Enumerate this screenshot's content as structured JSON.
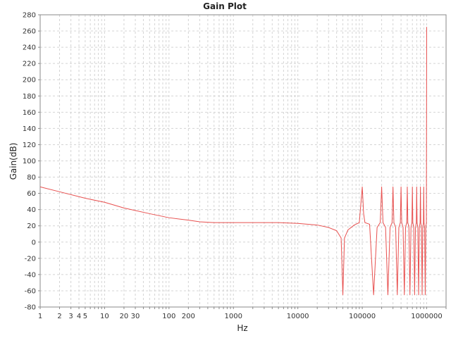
{
  "chart_data": {
    "type": "line",
    "title": "Gain Plot",
    "xlabel": "Hz",
    "ylabel": "Gain(dB)",
    "x_scale": "log",
    "xlim": [
      1,
      2000000
    ],
    "ylim": [
      -80,
      280
    ],
    "grid": true,
    "x_tick_labels": [
      {
        "value": 1,
        "label": "1"
      },
      {
        "value": 2,
        "label": "2"
      },
      {
        "value": 3,
        "label": "3"
      },
      {
        "value": 4,
        "label": "4"
      },
      {
        "value": 5,
        "label": "5"
      },
      {
        "value": 10,
        "label": "10"
      },
      {
        "value": 20,
        "label": "20"
      },
      {
        "value": 30,
        "label": "30"
      },
      {
        "value": 100,
        "label": "100"
      },
      {
        "value": 200,
        "label": "200"
      },
      {
        "value": 1000,
        "label": "1000"
      },
      {
        "value": 10000,
        "label": "10000"
      },
      {
        "value": 100000,
        "label": "100000"
      },
      {
        "value": 1000000,
        "label": "1000000"
      }
    ],
    "y_ticks": [
      -80,
      -60,
      -40,
      -20,
      0,
      20,
      40,
      60,
      80,
      100,
      120,
      140,
      160,
      180,
      200,
      220,
      240,
      260,
      280
    ],
    "series": [
      {
        "color": "#e8504f",
        "x": [
          1,
          2,
          5,
          10,
          20,
          50,
          100,
          200,
          300,
          500,
          1000,
          5000,
          10000,
          20000,
          30000,
          40000,
          47000,
          50000,
          53000,
          60000,
          75000,
          90000,
          100000,
          105000,
          110000,
          130000,
          150000,
          170000,
          190000,
          200000,
          210000,
          230000,
          250000,
          270000,
          290000,
          300000,
          310000,
          330000,
          350000,
          370000,
          390000,
          400000,
          410000,
          430000,
          450000,
          470000,
          490000,
          500000,
          510000,
          530000,
          550000,
          570000,
          590000,
          600000,
          610000,
          630000,
          650000,
          670000,
          690000,
          700000,
          710000,
          730000,
          750000,
          770000,
          790000,
          800000,
          810000,
          830000,
          850000,
          870000,
          890000,
          900000,
          910000,
          930000,
          950000,
          970000,
          990000,
          1000000
        ],
        "y": [
          68,
          62,
          54,
          49,
          42,
          35,
          30,
          27,
          25,
          24,
          24,
          24,
          23,
          21,
          18,
          14,
          5,
          -65,
          5,
          15,
          21,
          24,
          68,
          35,
          24,
          22,
          -65,
          18,
          24,
          68,
          24,
          18,
          -65,
          18,
          24,
          68,
          24,
          18,
          -65,
          18,
          24,
          68,
          24,
          18,
          -65,
          18,
          24,
          68,
          24,
          18,
          -65,
          18,
          24,
          68,
          24,
          18,
          -65,
          18,
          24,
          68,
          24,
          18,
          -65,
          18,
          24,
          68,
          24,
          18,
          -65,
          18,
          24,
          68,
          24,
          18,
          -65,
          18,
          24,
          265
        ]
      }
    ]
  }
}
